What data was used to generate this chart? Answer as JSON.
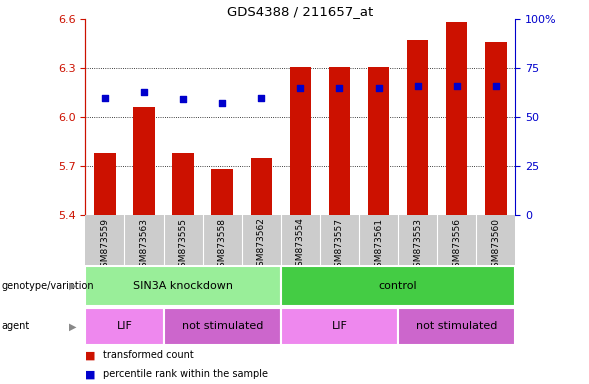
{
  "title": "GDS4388 / 211657_at",
  "samples": [
    "GSM873559",
    "GSM873563",
    "GSM873555",
    "GSM873558",
    "GSM873562",
    "GSM873554",
    "GSM873557",
    "GSM873561",
    "GSM873553",
    "GSM873556",
    "GSM873560"
  ],
  "bar_values": [
    5.78,
    6.06,
    5.78,
    5.68,
    5.75,
    6.31,
    6.31,
    6.31,
    6.47,
    6.58,
    6.46
  ],
  "dot_percentile": [
    60,
    63,
    59,
    57,
    60,
    65,
    65,
    65,
    66,
    66,
    66
  ],
  "ylim_left": [
    5.4,
    6.6
  ],
  "ylim_right": [
    0,
    100
  ],
  "yticks_left": [
    5.4,
    5.7,
    6.0,
    6.3,
    6.6
  ],
  "yticks_right": [
    0,
    25,
    50,
    75,
    100
  ],
  "bar_color": "#cc1100",
  "dot_color": "#0000cc",
  "bar_bottom": 5.4,
  "groups": [
    {
      "label": "SIN3A knockdown",
      "start": 0,
      "end": 5,
      "color": "#99ee99"
    },
    {
      "label": "control",
      "start": 5,
      "end": 11,
      "color": "#44cc44"
    }
  ],
  "agents": [
    {
      "label": "LIF",
      "start": 0,
      "end": 2,
      "color": "#ee88ee"
    },
    {
      "label": "not stimulated",
      "start": 2,
      "end": 5,
      "color": "#cc66cc"
    },
    {
      "label": "LIF",
      "start": 5,
      "end": 8,
      "color": "#ee88ee"
    },
    {
      "label": "not stimulated",
      "start": 8,
      "end": 11,
      "color": "#cc66cc"
    }
  ],
  "legend_items": [
    {
      "label": "transformed count",
      "color": "#cc1100"
    },
    {
      "label": "percentile rank within the sample",
      "color": "#0000cc"
    }
  ],
  "genotype_label": "genotype/variation",
  "agent_label": "agent",
  "left_axis_color": "#cc1100",
  "right_axis_color": "#0000cc",
  "sample_bg_color": "#cccccc"
}
